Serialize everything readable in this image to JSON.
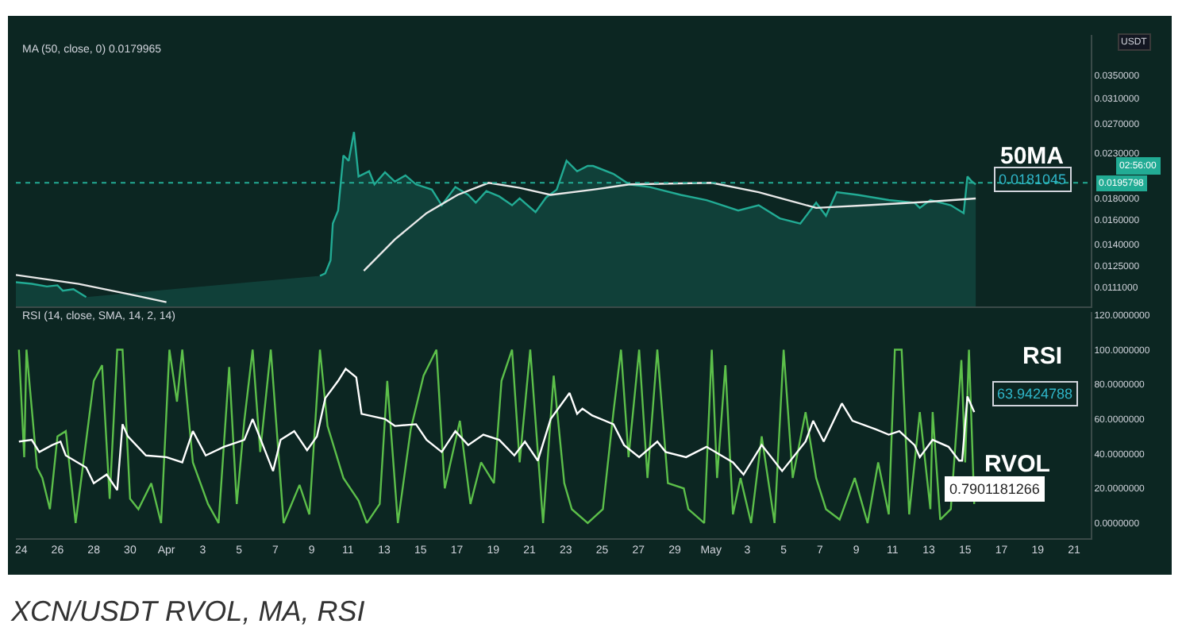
{
  "chart_data": [
    {
      "type": "line",
      "ylabel": "USDT",
      "log": "y",
      "tick_labels": "y",
      "grid": false,
      "marker": "none",
      "line_style": "solid",
      "xlim": [
        "--03-23T17:00",
        "--05-21T22:00"
      ],
      "xticks": [
        {
          "value": "--03-24",
          "label": "24"
        },
        {
          "value": "--03-26",
          "label": "26"
        },
        {
          "value": "--03-28",
          "label": "28"
        },
        {
          "value": "--03-30",
          "label": "30"
        },
        {
          "value": "--04-01",
          "label": "Apr"
        },
        {
          "value": "--04-03",
          "label": "3"
        },
        {
          "value": "--04-05",
          "label": "5"
        },
        {
          "value": "--04-07",
          "label": "7"
        },
        {
          "value": "--04-09",
          "label": "9"
        },
        {
          "value": "--04-11",
          "label": "11"
        },
        {
          "value": "--04-13",
          "label": "13"
        },
        {
          "value": "--04-15",
          "label": "15"
        },
        {
          "value": "--04-17",
          "label": "17"
        },
        {
          "value": "--04-19",
          "label": "19"
        },
        {
          "value": "--04-21",
          "label": "21"
        },
        {
          "value": "--04-23",
          "label": "23"
        },
        {
          "value": "--04-25",
          "label": "25"
        },
        {
          "value": "--04-27",
          "label": "27"
        },
        {
          "value": "--04-29",
          "label": "29"
        },
        {
          "value": "--05-01",
          "label": "May"
        },
        {
          "value": "--05-03",
          "label": "3"
        },
        {
          "value": "--05-05",
          "label": "5"
        },
        {
          "value": "--05-07",
          "label": "7"
        },
        {
          "value": "--05-09",
          "label": "9"
        },
        {
          "value": "--05-11",
          "label": "11"
        },
        {
          "value": "--05-13",
          "label": "13"
        },
        {
          "value": "--05-15",
          "label": "15"
        },
        {
          "value": "--05-17",
          "label": "17"
        },
        {
          "value": "--05-19",
          "label": "19"
        },
        {
          "value": "--05-21",
          "label": "21"
        }
      ],
      "ylim": [
        0.01,
        0.0436
      ],
      "yticks": [
        {
          "value": 0.035,
          "label": "0.0350000"
        },
        {
          "value": 0.031,
          "label": "0.0310000"
        },
        {
          "value": 0.027,
          "label": "0.0270000"
        },
        {
          "value": 0.023,
          "label": "0.0230000"
        },
        {
          "value": 0.018,
          "label": "0.0180000"
        },
        {
          "value": 0.016,
          "label": "0.0160000"
        },
        {
          "value": 0.014,
          "label": "0.0140000"
        },
        {
          "value": 0.0125,
          "label": "0.0125000"
        },
        {
          "value": 0.0111,
          "label": "0.0111000"
        }
      ],
      "ref_lines": [
        {
          "axis": "y",
          "value": 0.0195798,
          "label": "0.0195798",
          "color": "#22ab94",
          "line_style": "dotted"
        }
      ],
      "annotations": [
        "MA (50, close, 0) 0.0179965",
        "50MA",
        "0.0181045",
        "02:56:00"
      ],
      "series": [
        {
          "type": "area",
          "color": "#22ab94",
          "x": [
            "--03-23T17:00",
            "--03-24T14:00",
            "--03-25T10:00",
            "--03-26T00:00",
            "--03-26T07:00",
            "--03-26T21:00",
            "--03-27T14:00",
            "--03-27T21:00",
            "--03-28T12:00",
            "--03-29T09:00",
            "--03-29T14:00",
            "--03-29T18:00",
            "--03-29T22:00",
            "--03-30T02:00",
            "--03-30T04:00",
            "--03-30T11:00",
            "--04-04T00:00",
            "--04-09T09:00",
            "--04-09T11:00",
            "--04-09T18:00",
            "--04-10T01:00",
            "--04-10T04:00",
            "--04-10T11:00",
            "--04-10T18:00",
            "--04-11T01:00",
            "--04-11T08:00",
            "--04-11T14:00",
            "--04-12T04:00",
            "--04-12T11:00",
            "--04-13T01:00",
            "--04-13T14:00",
            "--04-14T04:00",
            "--04-14T18:00",
            "--04-15T15:00",
            "--04-16T04:00",
            "--04-16T22:00",
            "--04-17T15:00",
            "--04-18T01:00",
            "--04-18T15:00",
            "--04-19T08:00",
            "--04-20T01:00",
            "--04-20T11:00",
            "--04-21T08:00",
            "--04-21T22:00",
            "--04-22T12:00",
            "--04-23T01:00",
            "--04-23T15:00",
            "--04-24T05:00",
            "--04-24T12:00",
            "--04-25T15:00",
            "--04-26T12:00",
            "--04-27T15:00",
            "--04-29T08:00",
            "--04-30T18:00",
            "--05-02T12:00",
            "--05-03T15:00",
            "--05-04T19:00",
            "--05-05T22:00",
            "--05-06T19:00",
            "--05-07T08:00",
            "--05-07T22:00",
            "--05-09T02:00",
            "--05-10T19:00",
            "--05-12T05:00",
            "--05-12T12:00",
            "--05-13T02:00",
            "--05-14T05:00",
            "--05-14T22:00",
            "--05-15T03:00",
            "--05-15T09:00",
            "--05-15T14:00"
          ],
          "values": [
            0.01142,
            0.01132,
            0.01116,
            0.01123,
            0.01091,
            0.011,
            0.01054,
            null,
            null,
            null,
            null,
            null,
            null,
            null,
            null,
            null,
            null,
            null,
            0.01182,
            0.01198,
            0.01286,
            0.01569,
            0.01684,
            0.02268,
            0.02205,
            0.02577,
            0.02025,
            0.02083,
            0.0194,
            0.02072,
            0.01969,
            0.02037,
            0.0194,
            0.01886,
            0.01733,
            0.01913,
            0.01833,
            0.01757,
            0.01871,
            0.01818,
            0.01733,
            0.01798,
            0.01669,
            0.01808,
            0.01886,
            0.02205,
            0.02083,
            0.02144,
            0.02144,
            0.02054,
            0.0194,
            0.01913,
            0.01833,
            0.01782,
            0.01684,
            0.01733,
            0.01614,
            0.01569,
            0.01757,
            0.01637,
            0.0186,
            0.01833,
            0.01782,
            0.01757,
            0.01708,
            0.01782,
            0.01733,
            0.01661,
            0.02025,
            0.01969,
            0.0194
          ]
        },
        {
          "color": "#e8e8e8",
          "x": [
            "--03-23T17:00",
            "--03-27T04:00",
            "--03-30T00:00",
            "--04-01T00:00",
            "--04-02T00:00",
            "--04-06T00:00",
            "--04-10T18:00",
            "--04-11T21:00",
            "--04-13T14:00",
            "--04-15T08:00",
            "--04-17T01:00",
            "--04-18T18:00",
            "--04-20T11:00",
            "--04-22T04:00",
            "--04-24T12:00",
            "--04-26T12:00",
            "--05-01T01:00",
            "--05-03T15:00",
            "--05-06T19:00",
            "--05-09T15:00",
            "--05-13T02:00",
            "--05-15T14:00"
          ],
          "values": [
            0.01188,
            0.01132,
            0.01069,
            0.01025,
            null,
            null,
            null,
            0.01215,
            0.0144,
            0.01661,
            0.01833,
            0.01957,
            0.01904,
            0.01833,
            0.01886,
            0.0194,
            0.01957,
            0.0186,
            0.01708,
            0.01733,
            0.01767,
            0.01798
          ]
        }
      ]
    },
    {
      "type": "line",
      "grid": false,
      "marker": "none",
      "line_style": "solid",
      "xlim": [
        "--03-23T17:00",
        "--05-21T22:00"
      ],
      "xticks": [
        {
          "value": "--03-24",
          "label": "24"
        },
        {
          "value": "--03-26",
          "label": "26"
        },
        {
          "value": "--03-28",
          "label": "28"
        },
        {
          "value": "--03-30",
          "label": "30"
        },
        {
          "value": "--04-01",
          "label": "Apr"
        },
        {
          "value": "--04-03",
          "label": "3"
        },
        {
          "value": "--04-05",
          "label": "5"
        },
        {
          "value": "--04-07",
          "label": "7"
        },
        {
          "value": "--04-09",
          "label": "9"
        },
        {
          "value": "--04-11",
          "label": "11"
        },
        {
          "value": "--04-13",
          "label": "13"
        },
        {
          "value": "--04-15",
          "label": "15"
        },
        {
          "value": "--04-17",
          "label": "17"
        },
        {
          "value": "--04-19",
          "label": "19"
        },
        {
          "value": "--04-21",
          "label": "21"
        },
        {
          "value": "--04-23",
          "label": "23"
        },
        {
          "value": "--04-25",
          "label": "25"
        },
        {
          "value": "--04-27",
          "label": "27"
        },
        {
          "value": "--04-29",
          "label": "29"
        },
        {
          "value": "--05-01",
          "label": "May"
        },
        {
          "value": "--05-03",
          "label": "3"
        },
        {
          "value": "--05-05",
          "label": "5"
        },
        {
          "value": "--05-07",
          "label": "7"
        },
        {
          "value": "--05-09",
          "label": "9"
        },
        {
          "value": "--05-11",
          "label": "11"
        },
        {
          "value": "--05-13",
          "label": "13"
        },
        {
          "value": "--05-15",
          "label": "15"
        },
        {
          "value": "--05-17",
          "label": "17"
        },
        {
          "value": "--05-19",
          "label": "19"
        },
        {
          "value": "--05-21",
          "label": "21"
        }
      ],
      "ylim": [
        -8.6,
        121.8
      ],
      "yticks": [
        {
          "value": 120,
          "label": "120.0000000"
        },
        {
          "value": 100,
          "label": "100.0000000"
        },
        {
          "value": 80,
          "label": "80.0000000"
        },
        {
          "value": 60,
          "label": "60.0000000"
        },
        {
          "value": 40,
          "label": "40.0000000"
        },
        {
          "value": 20,
          "label": "20.0000000"
        },
        {
          "value": 0,
          "label": "0.0000000"
        }
      ],
      "annotations": [
        "RSI (14, close, SMA, 14, 2, 14)",
        "RSI",
        "63.9424788",
        "RVOL",
        "0.7901181266",
        "XCN/USDT RVOL, MA, RSI"
      ],
      "series": [
        {
          "color": "#5cbf4a",
          "x": [
            "--03-23T21:00",
            "--03-24T04:00",
            "--03-24T07:00",
            "--03-24T21:00",
            "--03-25T04:00",
            "--03-25T14:00",
            "--03-26T00:00",
            "--03-26T11:00",
            "--03-27T00:00",
            "--03-28T00:00",
            "--03-28T11:00",
            "--03-28T21:00",
            "--03-29T07:00",
            "--03-29T14:00",
            "--03-30T00:00",
            "--03-30T11:00",
            "--03-31T04:00",
            "--03-31T17:00",
            "--04-01T04:00",
            "--04-01T14:00",
            "--04-01T21:00",
            "--04-02T11:00",
            "--04-03T07:00",
            "--04-03T21:00",
            "--04-04T11:00",
            "--04-04T21:00",
            "--04-05T07:00",
            "--04-05T18:00",
            "--04-06T04:00",
            "--04-06T18:00",
            "--04-07T11:00",
            "--04-08T08:00",
            "--04-08T21:00",
            "--04-09T11:00",
            "--04-09T21:00",
            "--04-10T18:00",
            "--04-11T14:00",
            "--04-12T01:00",
            "--04-12T18:00",
            "--04-13T04:00",
            "--04-13T18:00",
            "--04-14T11:00",
            "--04-15T04:00",
            "--04-15T21:00",
            "--04-16T08:00",
            "--04-17T04:00",
            "--04-17T18:00",
            "--04-18T08:00",
            "--04-19T01:00",
            "--04-19T11:00",
            "--04-20T01:00",
            "--04-20T11:00",
            "--04-21T01:00",
            "--04-21T18:00",
            "--04-22T08:00",
            "--04-22T22:00",
            "--04-23T08:00",
            "--04-24T05:00",
            "--04-25T01:00",
            "--04-25T15:00",
            "--04-26T01:00",
            "--04-26T11:00",
            "--04-27T01:00",
            "--04-27T12:00",
            "--04-28T01:00",
            "--04-28T15:00",
            "--04-29T12:00",
            "--04-29T18:00",
            "--04-30T15:00",
            "--05-01T01:00",
            "--05-01T08:00",
            "--05-01T19:00",
            "--05-02T05:00",
            "--05-02T15:00",
            "--05-03T05:00",
            "--05-03T19:00",
            "--05-04T12:00",
            "--05-05T00:00",
            "--05-05T12:00",
            "--05-06T05:00",
            "--05-06T19:00",
            "--05-07T08:00",
            "--05-08T02:00",
            "--05-08T22:00",
            "--05-09T15:00",
            "--05-10T05:00",
            "--05-10T19:00",
            "--05-11T03:00",
            "--05-11T12:00",
            "--05-11T22:00",
            "--05-12T12:00",
            "--05-13T02:00",
            "--05-13T05:00",
            "--05-13T15:00",
            "--05-14T05:00",
            "--05-14T19:00",
            "--05-15T00:00",
            "--05-15T05:00",
            "--05-15T12:00"
          ],
          "values": [
            100,
            38,
            100,
            32,
            26,
            8,
            50,
            53,
            0,
            82,
            91,
            14,
            100,
            100,
            14,
            8,
            23,
            0,
            100,
            70,
            100,
            35,
            11,
            0,
            90,
            11,
            59,
            100,
            41,
            100,
            0,
            22,
            5,
            100,
            56,
            26,
            13,
            0,
            11,
            82,
            0,
            54,
            85,
            100,
            20,
            59,
            11,
            35,
            23,
            82,
            100,
            35,
            100,
            0,
            85,
            23,
            8,
            0,
            8,
            64,
            100,
            38,
            100,
            26,
            100,
            23,
            20,
            8,
            0,
            100,
            26,
            91,
            5,
            26,
            0,
            50,
            0,
            100,
            26,
            64,
            26,
            8,
            2,
            26,
            0,
            35,
            5,
            100,
            100,
            5,
            64,
            8,
            64,
            2,
            8,
            94,
            35,
            100,
            11
          ]
        },
        {
          "color": "#ffffff",
          "x": [
            "--03-23T21:00",
            "--03-24T14:00",
            "--03-25T00:00",
            "--03-25T17:00",
            "--03-26T04:00",
            "--03-26T11:00",
            "--03-27T14:00",
            "--03-28T00:00",
            "--03-28T17:00",
            "--03-29T07:00",
            "--03-29T14:00",
            "--03-29T21:00",
            "--03-30T21:00",
            "--04-01T00:00",
            "--04-01T21:00",
            "--04-02T11:00",
            "--04-03T04:00",
            "--04-04T04:00",
            "--04-05T07:00",
            "--04-05T18:00",
            "--04-06T21:00",
            "--04-07T07:00",
            "--04-08T01:00",
            "--04-08T18:00",
            "--04-09T07:00",
            "--04-09T18:00",
            "--04-10T11:00",
            "--04-10T21:00",
            "--04-11T11:00",
            "--04-11T18:00",
            "--04-13T01:00",
            "--04-13T14:00",
            "--04-14T18:00",
            "--04-15T08:00",
            "--04-16T04:00",
            "--04-16T22:00",
            "--04-17T15:00",
            "--04-18T11:00",
            "--04-19T08:00",
            "--04-20T04:00",
            "--04-20T18:00",
            "--04-21T11:00",
            "--04-22T04:00",
            "--04-23T05:00",
            "--04-23T15:00",
            "--04-23T22:00",
            "--04-24T11:00",
            "--04-25T15:00",
            "--04-26T05:00",
            "--04-27T01:00",
            "--04-28T01:00",
            "--04-28T12:00",
            "--04-29T15:00",
            "--04-30T18:00",
            "--05-02T05:00",
            "--05-02T19:00",
            "--05-03T19:00",
            "--05-04T22:00",
            "--05-06T05:00",
            "--05-06T15:00",
            "--05-07T05:00",
            "--05-08T05:00",
            "--05-08T19:00",
            "--05-10T02:00",
            "--05-10T19:00",
            "--05-11T09:00",
            "--05-12T05:00",
            "--05-12T12:00",
            "--05-13T05:00",
            "--05-14T02:00",
            "--05-14T16:00",
            "--05-14T20:00",
            "--05-15T03:00",
            "--05-15T12:00"
          ],
          "values": [
            47,
            48,
            41,
            45,
            47,
            39,
            32,
            23,
            28,
            19,
            57,
            50,
            39,
            38,
            35,
            53,
            39,
            44,
            48,
            60,
            30,
            48,
            53,
            42,
            50,
            72,
            82,
            89,
            84,
            63,
            60,
            56,
            57,
            48,
            41,
            53,
            45,
            51,
            48,
            39,
            47,
            36,
            60,
            75,
            63,
            66,
            62,
            57,
            45,
            38,
            47,
            41,
            38,
            44,
            35,
            28,
            45,
            30,
            47,
            59,
            47,
            69,
            59,
            54,
            51,
            53,
            45,
            38,
            48,
            44,
            36,
            36,
            73,
            64
          ]
        }
      ]
    }
  ]
}
